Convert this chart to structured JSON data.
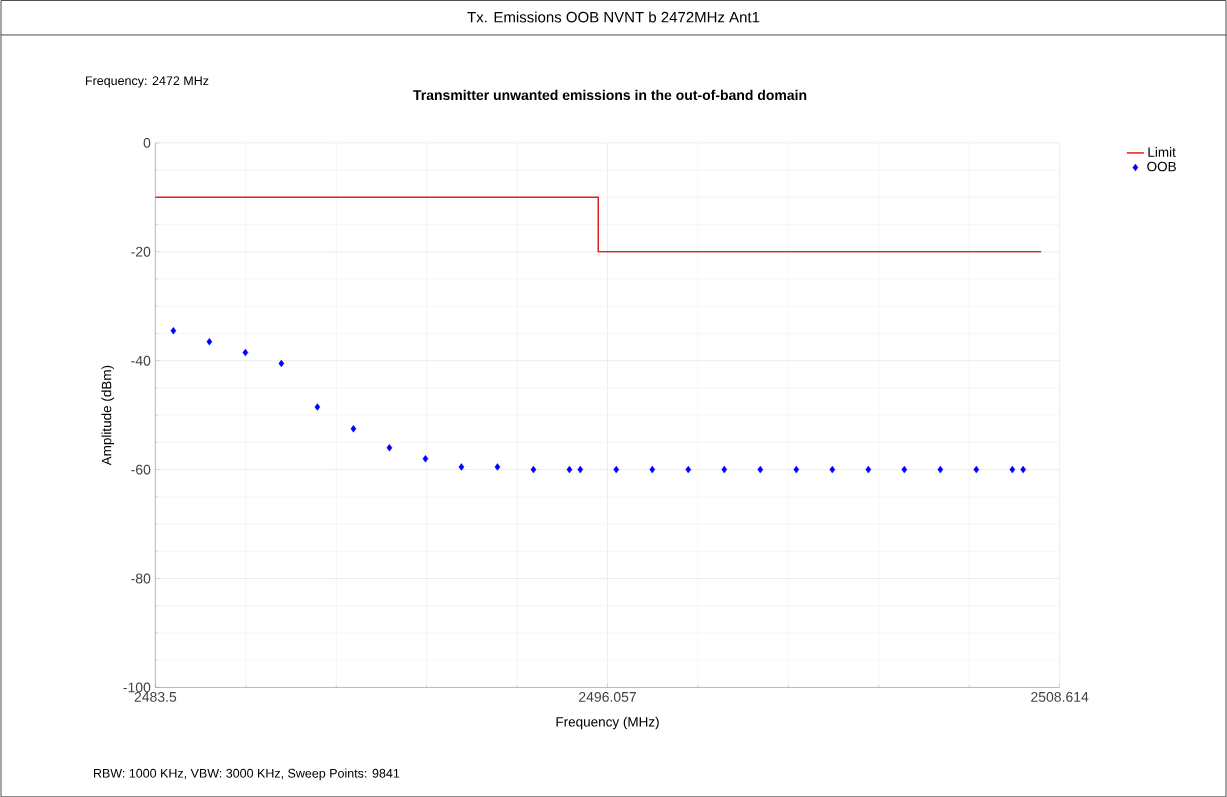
{
  "chart_data": {
    "type": "scatter",
    "title": "Tx. Emissions OOB NVNT b 2472MHz Ant1",
    "subtitle": "Transmitter unwanted emissions in the out-of-band domain",
    "xlabel": "Frequency (MHz)",
    "ylabel": "Amplitude (dBm)",
    "annotations": [
      "Frequency: 2472 MHz",
      "RBW: 1000 KHz,  VBW: 3000 KHz,  Sweep Points: 9841"
    ],
    "xlim": [
      2483.5,
      2508.614
    ],
    "ylim": [
      -100,
      0
    ],
    "xticks": [
      2483.5,
      2496.057,
      2508.614
    ],
    "yticks": [
      -100,
      -80,
      -60,
      -40,
      -20,
      0
    ],
    "grid": true,
    "legend": "top right",
    "series": [
      {
        "name": "Limit",
        "type": "step",
        "color": "#e02020",
        "x": [
          2483.5,
          2495.8,
          2508.1
        ],
        "values": [
          -10,
          -20,
          -20
        ]
      },
      {
        "name": "OOB",
        "marker": "diamond",
        "color": "#0000ff",
        "x": [
          2484.0,
          2485.0,
          2486.0,
          2487.0,
          2488.0,
          2489.0,
          2490.0,
          2491.0,
          2492.0,
          2493.0,
          2494.0,
          2495.0,
          2495.3,
          2496.3,
          2497.3,
          2498.3,
          2499.3,
          2500.3,
          2501.3,
          2502.3,
          2503.3,
          2504.3,
          2505.3,
          2506.3,
          2507.3,
          2507.6
        ],
        "values": [
          -34.5,
          -36.5,
          -38.5,
          -40.5,
          -48.5,
          -52.5,
          -56,
          -58,
          -59.5,
          -59.5,
          -60,
          -60,
          -60,
          -60,
          -60,
          -60,
          -60,
          -60,
          -60,
          -60,
          -60,
          -60,
          -60,
          -60,
          -60,
          -60
        ]
      }
    ]
  }
}
